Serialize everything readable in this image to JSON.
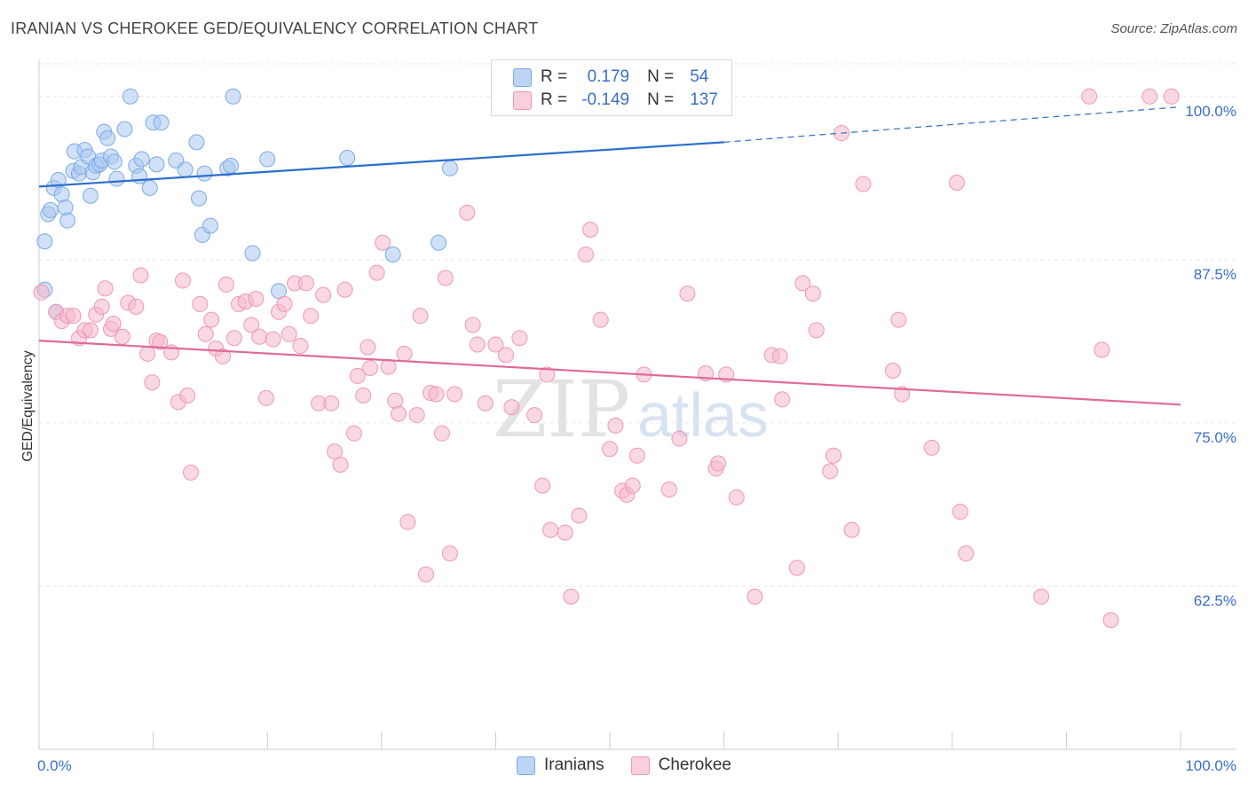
{
  "title": "IRANIAN VS CHEROKEE GED/EQUIVALENCY CORRELATION CHART",
  "source": "Source: ZipAtlas.com",
  "watermark": "ZIPatlas",
  "legend": {
    "rows": [
      {
        "r_label": "R =",
        "r_value": "0.179",
        "n_label": "N =",
        "n_value": "54",
        "color": "#a9c8f0"
      },
      {
        "r_label": "R =",
        "r_value": "-0.149",
        "n_label": "N =",
        "n_value": "137",
        "color": "#f5b8cc"
      }
    ]
  },
  "bottom_legend": [
    "Iranians",
    "Cherokee"
  ],
  "chart_data": {
    "type": "scatter",
    "xlabel": "",
    "ylabel": "GED/Equivalency",
    "xlim": [
      0,
      100
    ],
    "ylim": [
      50,
      102.5
    ],
    "x_tick_labels": [
      {
        "value": 0,
        "label": "0.0%"
      },
      {
        "value": 100,
        "label": "100.0%"
      }
    ],
    "y_tick_labels": [
      {
        "value": 62.5,
        "label": "62.5%"
      },
      {
        "value": 75.0,
        "label": "75.0%"
      },
      {
        "value": 87.5,
        "label": "87.5%"
      },
      {
        "value": 100.0,
        "label": "100.0%"
      }
    ],
    "grid": true,
    "series": [
      {
        "name": "Iranians",
        "color": "#7aaae6",
        "fill": "#a9c8f0",
        "trend": {
          "x": [
            0,
            60
          ],
          "y": [
            93.1,
            96.5
          ],
          "dashed_to": {
            "x": 100,
            "y": 99.2
          },
          "color": "#2b6fcc"
        },
        "points": [
          [
            0.5,
            85.2
          ],
          [
            0.5,
            88.9
          ],
          [
            0.8,
            91
          ],
          [
            1,
            91.3
          ],
          [
            1.3,
            93
          ],
          [
            1.5,
            83.5
          ],
          [
            1.7,
            93.6
          ],
          [
            2,
            92.5
          ],
          [
            2.3,
            91.5
          ],
          [
            2.5,
            90.5
          ],
          [
            3,
            94.3
          ],
          [
            3.1,
            95.8
          ],
          [
            3.5,
            94.1
          ],
          [
            3.7,
            94.6
          ],
          [
            4,
            95.9
          ],
          [
            4.3,
            95.4
          ],
          [
            4.5,
            92.4
          ],
          [
            4.7,
            94.2
          ],
          [
            5,
            94.7
          ],
          [
            5.3,
            94.8
          ],
          [
            5.5,
            95.1
          ],
          [
            5.7,
            97.3
          ],
          [
            6,
            96.8
          ],
          [
            6.3,
            95.4
          ],
          [
            6.6,
            95
          ],
          [
            6.8,
            93.7
          ],
          [
            7.5,
            97.5
          ],
          [
            8,
            100
          ],
          [
            8.5,
            94.7
          ],
          [
            8.8,
            93.9
          ],
          [
            9,
            95.2
          ],
          [
            9.7,
            93
          ],
          [
            10,
            98
          ],
          [
            10.3,
            94.8
          ],
          [
            10.7,
            98
          ],
          [
            12,
            95.1
          ],
          [
            12.8,
            94.4
          ],
          [
            13.8,
            96.5
          ],
          [
            14,
            92.2
          ],
          [
            14.3,
            89.4
          ],
          [
            14.5,
            94.1
          ],
          [
            15,
            90.1
          ],
          [
            16.5,
            94.5
          ],
          [
            16.8,
            94.7
          ],
          [
            17,
            100
          ],
          [
            18.7,
            88
          ],
          [
            20,
            95.2
          ],
          [
            21,
            85.1
          ],
          [
            27,
            95.3
          ],
          [
            31,
            87.9
          ],
          [
            35,
            88.8
          ],
          [
            36,
            94.5
          ],
          [
            52,
            100
          ],
          [
            54,
            100
          ]
        ]
      },
      {
        "name": "Cherokee",
        "color": "#ee97b5",
        "fill": "#f5b8cc",
        "trend": {
          "x": [
            0,
            100
          ],
          "y": [
            81.3,
            76.4
          ],
          "color": "#e06a97"
        },
        "points": [
          [
            0.2,
            85
          ],
          [
            1.5,
            83.5
          ],
          [
            2,
            82.8
          ],
          [
            2.5,
            83.2
          ],
          [
            3,
            83.2
          ],
          [
            3.5,
            81.5
          ],
          [
            4,
            82.1
          ],
          [
            4.5,
            82.1
          ],
          [
            5,
            83.3
          ],
          [
            5.5,
            83.9
          ],
          [
            5.8,
            85.3
          ],
          [
            6.3,
            82.2
          ],
          [
            6.5,
            82.6
          ],
          [
            7.3,
            81.6
          ],
          [
            7.8,
            84.2
          ],
          [
            8.5,
            83.9
          ],
          [
            8.9,
            86.3
          ],
          [
            9.5,
            80.3
          ],
          [
            9.9,
            78.1
          ],
          [
            10.3,
            81.3
          ],
          [
            10.6,
            81.2
          ],
          [
            11.6,
            80.4
          ],
          [
            12.2,
            76.6
          ],
          [
            12.6,
            85.9
          ],
          [
            13,
            77.1
          ],
          [
            13.3,
            71.2
          ],
          [
            14.1,
            84.1
          ],
          [
            14.6,
            81.8
          ],
          [
            15.1,
            82.9
          ],
          [
            15.5,
            80.7
          ],
          [
            16.1,
            80.1
          ],
          [
            16.4,
            85.6
          ],
          [
            17.1,
            81.5
          ],
          [
            17.5,
            84.1
          ],
          [
            18.1,
            84.3
          ],
          [
            18.6,
            82.5
          ],
          [
            19,
            84.5
          ],
          [
            19.3,
            81.6
          ],
          [
            19.9,
            76.9
          ],
          [
            20.5,
            81.4
          ],
          [
            21,
            83.5
          ],
          [
            21.5,
            84.1
          ],
          [
            21.9,
            81.8
          ],
          [
            22.4,
            85.7
          ],
          [
            22.9,
            80.9
          ],
          [
            23.4,
            85.7
          ],
          [
            23.8,
            83.2
          ],
          [
            24.5,
            76.5
          ],
          [
            24.9,
            84.8
          ],
          [
            25.6,
            76.5
          ],
          [
            25.9,
            72.8
          ],
          [
            26.4,
            71.8
          ],
          [
            26.8,
            85.2
          ],
          [
            27.6,
            74.2
          ],
          [
            27.9,
            78.6
          ],
          [
            28.4,
            77.1
          ],
          [
            28.8,
            80.8
          ],
          [
            29,
            79.2
          ],
          [
            29.6,
            86.5
          ],
          [
            30.1,
            88.8
          ],
          [
            30.6,
            79.3
          ],
          [
            31.2,
            76.7
          ],
          [
            31.5,
            75.7
          ],
          [
            32,
            80.3
          ],
          [
            32.3,
            67.4
          ],
          [
            33.1,
            75.6
          ],
          [
            33.4,
            83.2
          ],
          [
            33.9,
            63.4
          ],
          [
            34.3,
            77.3
          ],
          [
            34.8,
            77.2
          ],
          [
            35.3,
            74.2
          ],
          [
            35.6,
            86.1
          ],
          [
            36,
            65
          ],
          [
            36.4,
            77.2
          ],
          [
            37.5,
            91.1
          ],
          [
            38,
            82.5
          ],
          [
            38.4,
            81
          ],
          [
            39.1,
            76.5
          ],
          [
            40,
            81
          ],
          [
            40.9,
            80.2
          ],
          [
            41.4,
            76.2
          ],
          [
            42.1,
            81.5
          ],
          [
            43.4,
            75.6
          ],
          [
            44.1,
            70.2
          ],
          [
            44.5,
            78.7
          ],
          [
            44.8,
            66.8
          ],
          [
            46.1,
            66.6
          ],
          [
            46.6,
            61.7
          ],
          [
            47.3,
            67.9
          ],
          [
            47.9,
            87.9
          ],
          [
            48.3,
            89.8
          ],
          [
            49.2,
            82.9
          ],
          [
            50,
            73
          ],
          [
            50.5,
            74.8
          ],
          [
            51.1,
            69.8
          ],
          [
            51.5,
            69.5
          ],
          [
            52,
            70.2
          ],
          [
            52.4,
            72.5
          ],
          [
            53,
            78.7
          ],
          [
            55.2,
            69.9
          ],
          [
            56.1,
            73.8
          ],
          [
            56.8,
            84.9
          ],
          [
            58.4,
            78.8
          ],
          [
            59.3,
            71.5
          ],
          [
            59.5,
            71.9
          ],
          [
            60.2,
            78.7
          ],
          [
            61.1,
            69.3
          ],
          [
            62.7,
            61.7
          ],
          [
            64.2,
            80.2
          ],
          [
            64.9,
            80.1
          ],
          [
            65.1,
            76.8
          ],
          [
            66.4,
            63.9
          ],
          [
            66.9,
            85.7
          ],
          [
            67.8,
            84.9
          ],
          [
            68.1,
            82.1
          ],
          [
            69.3,
            71.3
          ],
          [
            69.6,
            72.5
          ],
          [
            70.3,
            97.2
          ],
          [
            71.2,
            66.8
          ],
          [
            72.2,
            93.3
          ],
          [
            74.8,
            79
          ],
          [
            75.3,
            82.9
          ],
          [
            75.6,
            77.2
          ],
          [
            78.2,
            73.1
          ],
          [
            80.4,
            93.4
          ],
          [
            80.7,
            68.2
          ],
          [
            81.2,
            65
          ],
          [
            87.8,
            61.7
          ],
          [
            93.1,
            80.6
          ],
          [
            93.9,
            59.9
          ],
          [
            92,
            100
          ],
          [
            97.3,
            100
          ],
          [
            99.2,
            100
          ]
        ]
      }
    ]
  }
}
